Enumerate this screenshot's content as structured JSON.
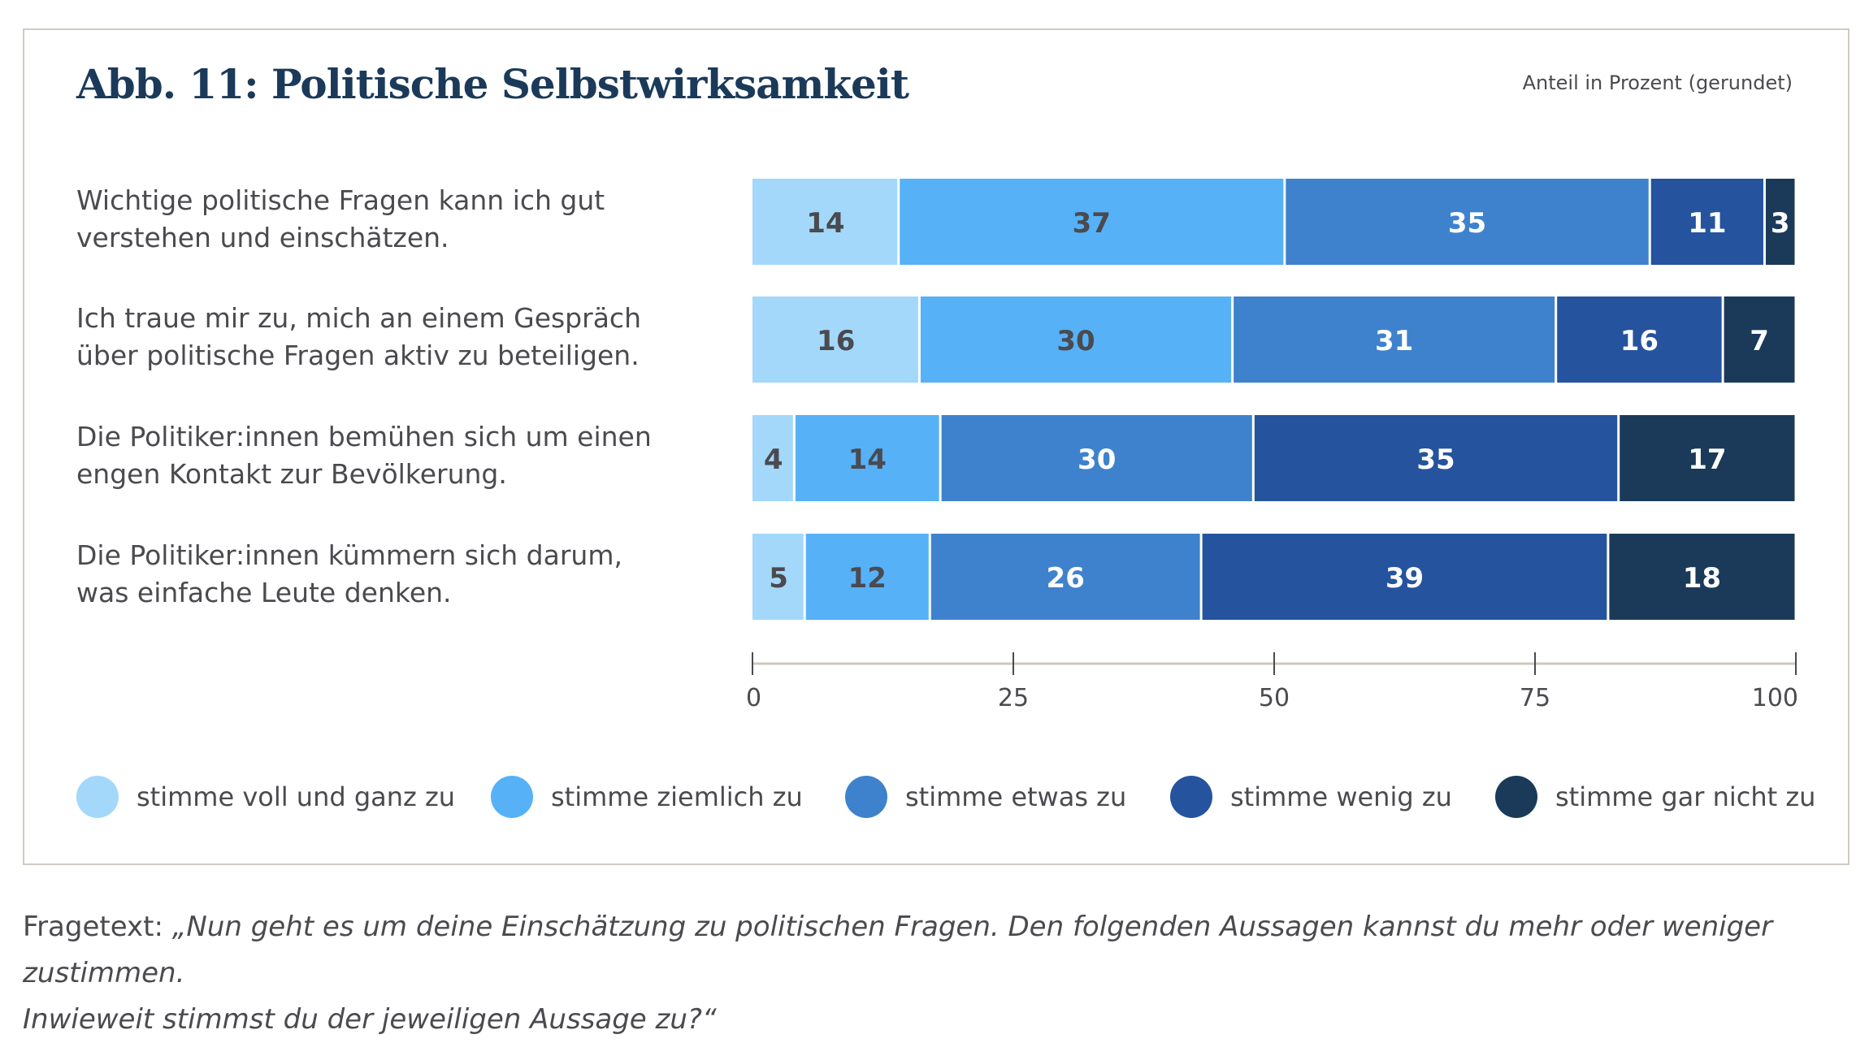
{
  "chart_data": {
    "type": "bar",
    "orientation": "horizontal",
    "stacked": true,
    "title": "Abb. 11: Politische Selbstwirksamkeit",
    "subtitle": "Anteil in Prozent (gerundet)",
    "xlabel": "",
    "ylabel": "",
    "xlim": [
      0,
      100
    ],
    "xticks": [
      0,
      25,
      50,
      75,
      100
    ],
    "grid": false,
    "legend_position": "bottom",
    "categories": [
      "Wichtige politische Fragen kann ich gut verstehen und einschätzen.",
      "Ich traue mir zu, mich an einem Gespräch über politische Fragen aktiv zu beteiligen.",
      "Die Politiker:innen bemühen sich um einen engen Kontakt zur Bevölkerung.",
      "Die Politiker:innen kümmern sich darum, was einfache Leute denken."
    ],
    "category_lines": [
      [
        "Wichtige politische Fragen kann ich gut",
        "verstehen und einschätzen."
      ],
      [
        "Ich traue mir zu, mich an einem Gespräch",
        "über politische Fragen aktiv zu beteiligen."
      ],
      [
        "Die Politiker:innen bemühen sich um einen",
        "engen Kontakt zur Bevölkerung."
      ],
      [
        "Die Politiker:innen kümmern sich darum,",
        "was einfache Leute denken."
      ]
    ],
    "series": [
      {
        "name": "stimme voll und ganz zu",
        "color": "#a3d8fa",
        "label_color": "#4a4a4f",
        "values": [
          14,
          16,
          4,
          5
        ]
      },
      {
        "name": "stimme ziemlich zu",
        "color": "#56b1f7",
        "label_color": "#4a4a4f",
        "values": [
          37,
          30,
          14,
          12
        ]
      },
      {
        "name": "stimme etwas zu",
        "color": "#3e82cd",
        "label_color": "#ffffff",
        "values": [
          35,
          31,
          30,
          26
        ]
      },
      {
        "name": "stimme wenig zu",
        "color": "#25539e",
        "label_color": "#ffffff",
        "values": [
          11,
          16,
          35,
          39
        ]
      },
      {
        "name": "stimme gar nicht zu",
        "color": "#1b3a5a",
        "label_color": "#ffffff",
        "values": [
          3,
          7,
          17,
          18
        ]
      }
    ]
  },
  "footer": {
    "prefix": "Fragetext: ",
    "question_line1": "„Nun geht es um deine Einschätzung zu politischen Fragen. Den folgenden Aussagen kannst du mehr oder weniger zustimmen.",
    "question_line2": "Inwieweit stimmst du der jeweiligen Aussage zu?“"
  }
}
